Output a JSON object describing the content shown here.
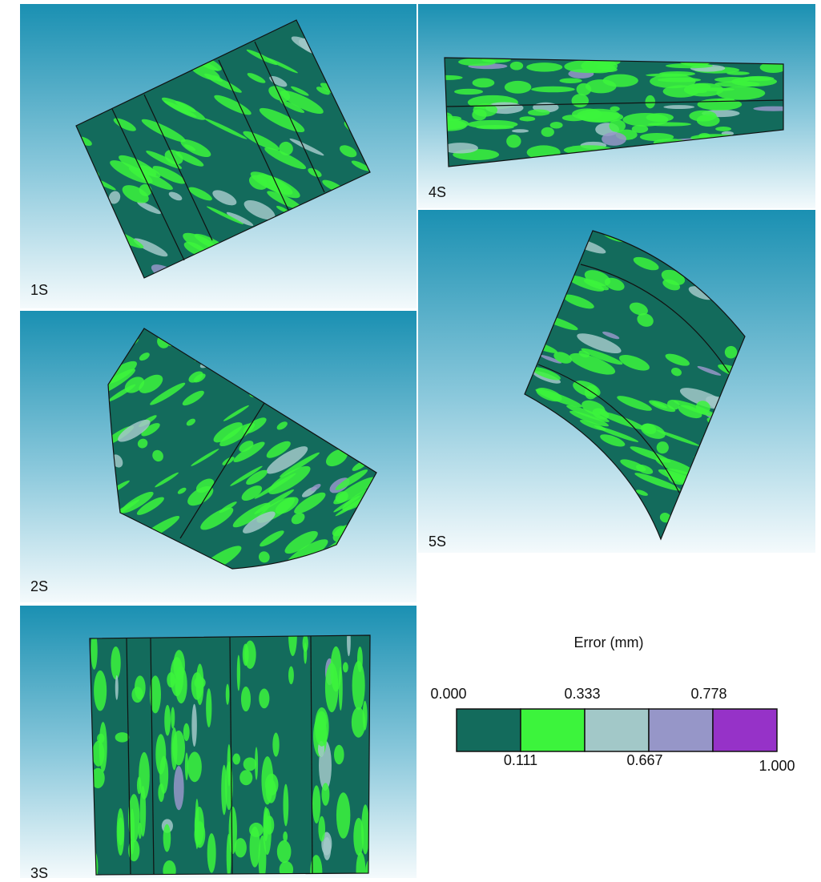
{
  "panels": [
    {
      "label": "1S"
    },
    {
      "label": "2S"
    },
    {
      "label": "3S"
    },
    {
      "label": "4S"
    },
    {
      "label": "5S"
    }
  ],
  "legend": {
    "title": "Error (mm)",
    "labels": [
      "0.000",
      "0.111",
      "0.333",
      "0.667",
      "0.778",
      "1.000"
    ],
    "colors": [
      "#136b5c",
      "#3cf43c",
      "#a2c8c8",
      "#9696c8",
      "#9632c8"
    ]
  }
}
